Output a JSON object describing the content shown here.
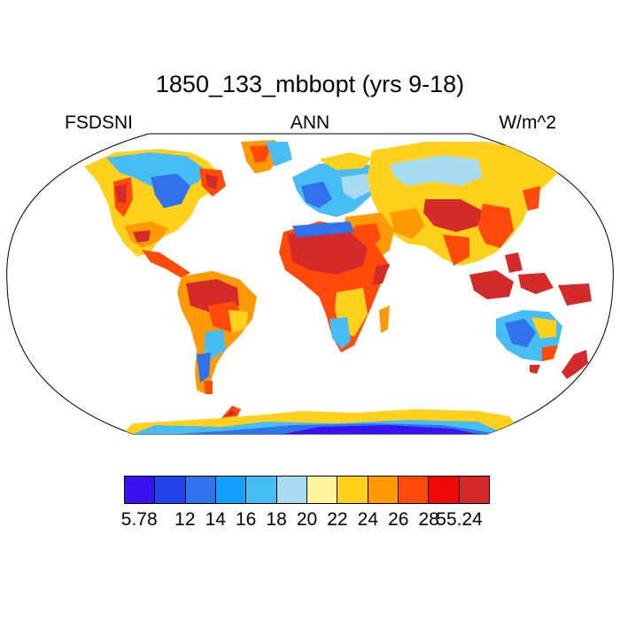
{
  "title": "1850_133_mbbopt (yrs 9-18)",
  "left_label": "FSDSNI",
  "center_label": "ANN",
  "right_label": "W/m^2",
  "colorbar": {
    "colors": [
      "#3a12f0",
      "#2344ea",
      "#2f72eb",
      "#14a0ff",
      "#46bdf4",
      "#a8dcf0",
      "#fff59c",
      "#ffd11a",
      "#ff9a05",
      "#ff4a0a",
      "#ef0a0a",
      "#d42a2a"
    ],
    "labels": [
      "5.78",
      "12",
      "14",
      "16",
      "18",
      "20",
      "22",
      "24",
      "26",
      "28",
      "55.24"
    ]
  },
  "map": {
    "projection": "Robinson",
    "colors": {
      "outline": "#000000",
      "ocean": "#ffffff",
      "very_low": "#3a12f0",
      "low": "#2f72eb",
      "mid_low": "#46bdf4",
      "mid": "#a8dcf0",
      "mid_high": "#ffd11a",
      "high": "#ff4a0a",
      "very_high": "#d42a2a"
    }
  }
}
